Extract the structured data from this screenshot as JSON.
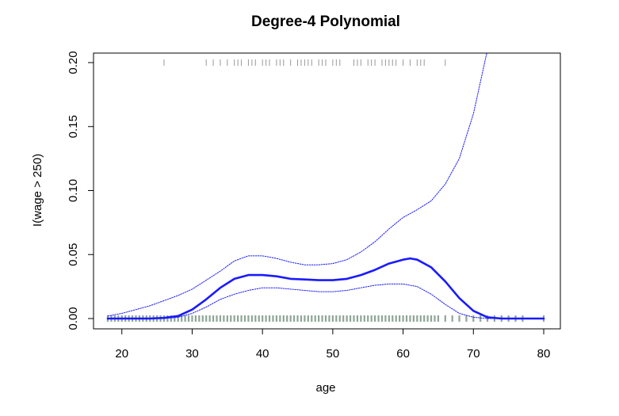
{
  "chart_data": {
    "type": "line",
    "title": "Degree-4 Polynomial",
    "xlabel": "age",
    "ylabel": "I(wage > 250)",
    "xlim": [
      18,
      80
    ],
    "ylim": [
      0,
      0.2
    ],
    "x_ticks": [
      20,
      30,
      40,
      50,
      60,
      70,
      80
    ],
    "x_tick_labels": [
      "20",
      "30",
      "40",
      "50",
      "60",
      "70",
      "80"
    ],
    "y_ticks": [
      0,
      0.05,
      0.1,
      0.15,
      0.2
    ],
    "y_tick_labels": [
      "0.00",
      "0.05",
      "0.10",
      "0.15",
      "0.20"
    ],
    "grid": false,
    "colors": {
      "fit": "#1a1aff",
      "band": "#1a1aff",
      "rug_top": "#999999",
      "rug_bottom": "#8fa596"
    },
    "series": [
      {
        "x": [
          18,
          20,
          22,
          24,
          26,
          28,
          30,
          32,
          34,
          36,
          38,
          40,
          42,
          44,
          46,
          48,
          50,
          52,
          54,
          56,
          58,
          60,
          61,
          62,
          64,
          66,
          68,
          70,
          72,
          74,
          76,
          78,
          80
        ],
        "values": [
          0.0,
          0.0,
          0.0,
          0.0,
          0.0005,
          0.002,
          0.007,
          0.015,
          0.024,
          0.031,
          0.034,
          0.034,
          0.033,
          0.031,
          0.0305,
          0.03,
          0.03,
          0.031,
          0.034,
          0.038,
          0.043,
          0.046,
          0.047,
          0.046,
          0.04,
          0.029,
          0.016,
          0.006,
          0.001,
          0.0,
          0.0,
          0.0,
          0.0
        ]
      },
      {
        "x": [
          18,
          20,
          22,
          24,
          26,
          28,
          30,
          32,
          34,
          36,
          38,
          40,
          42,
          44,
          46,
          48,
          50,
          52,
          54,
          56,
          58,
          60,
          62,
          64,
          66,
          68,
          70,
          71,
          72
        ],
        "values": [
          0.002,
          0.004,
          0.007,
          0.01,
          0.014,
          0.018,
          0.023,
          0.03,
          0.037,
          0.045,
          0.049,
          0.049,
          0.047,
          0.044,
          0.042,
          0.042,
          0.043,
          0.046,
          0.052,
          0.06,
          0.07,
          0.079,
          0.085,
          0.092,
          0.105,
          0.125,
          0.16,
          0.185,
          0.21
        ]
      },
      {
        "x": [
          18,
          20,
          22,
          24,
          26,
          28,
          30,
          32,
          34,
          36,
          38,
          40,
          42,
          44,
          46,
          48,
          50,
          52,
          54,
          56,
          58,
          60,
          62,
          64,
          66,
          68,
          70,
          72,
          74,
          76,
          78,
          80
        ],
        "values": [
          0.0,
          0.0,
          0.0,
          0.0,
          0.0,
          0.001,
          0.004,
          0.009,
          0.015,
          0.019,
          0.022,
          0.024,
          0.024,
          0.023,
          0.022,
          0.021,
          0.021,
          0.022,
          0.024,
          0.026,
          0.027,
          0.027,
          0.025,
          0.019,
          0.011,
          0.004,
          0.001,
          0.0,
          0.0,
          0.0,
          0.0,
          0.0
        ]
      }
    ],
    "rug_top_x": [
      26,
      32,
      33,
      34,
      35,
      36,
      36.5,
      37,
      38,
      38.5,
      39,
      40,
      40.5,
      41,
      42,
      42.5,
      43,
      44,
      45,
      45.5,
      46,
      46.5,
      47,
      48,
      48.5,
      49,
      50,
      50.5,
      51,
      53,
      53.5,
      54,
      55,
      55.5,
      56,
      57,
      57.5,
      58,
      58.5,
      59,
      60,
      61,
      62,
      62.5,
      63,
      66
    ],
    "rug_bottom_x": [
      18,
      18.5,
      19,
      19.5,
      20,
      20.5,
      21,
      21.5,
      22,
      22.5,
      23,
      23.5,
      24,
      24.5,
      25,
      25.5,
      26,
      26.5,
      27,
      27.5,
      28,
      28.5,
      29,
      29.5,
      30,
      30.5,
      31,
      31.5,
      32,
      32.5,
      33,
      33.5,
      34,
      34.5,
      35,
      35.5,
      36,
      36.5,
      37,
      37.5,
      38,
      38.5,
      39,
      39.5,
      40,
      40.5,
      41,
      41.5,
      42,
      42.5,
      43,
      43.5,
      44,
      44.5,
      45,
      45.5,
      46,
      46.5,
      47,
      47.5,
      48,
      48.5,
      49,
      49.5,
      50,
      50.5,
      51,
      51.5,
      52,
      52.5,
      53,
      53.5,
      54,
      54.5,
      55,
      55.5,
      56,
      56.5,
      57,
      57.5,
      58,
      58.5,
      59,
      59.5,
      60,
      60.5,
      61,
      61.5,
      62,
      62.5,
      63,
      63.5,
      64,
      64.5,
      65,
      66,
      67,
      68,
      69,
      70,
      71,
      72,
      73,
      74,
      75,
      76,
      77,
      80
    ]
  }
}
